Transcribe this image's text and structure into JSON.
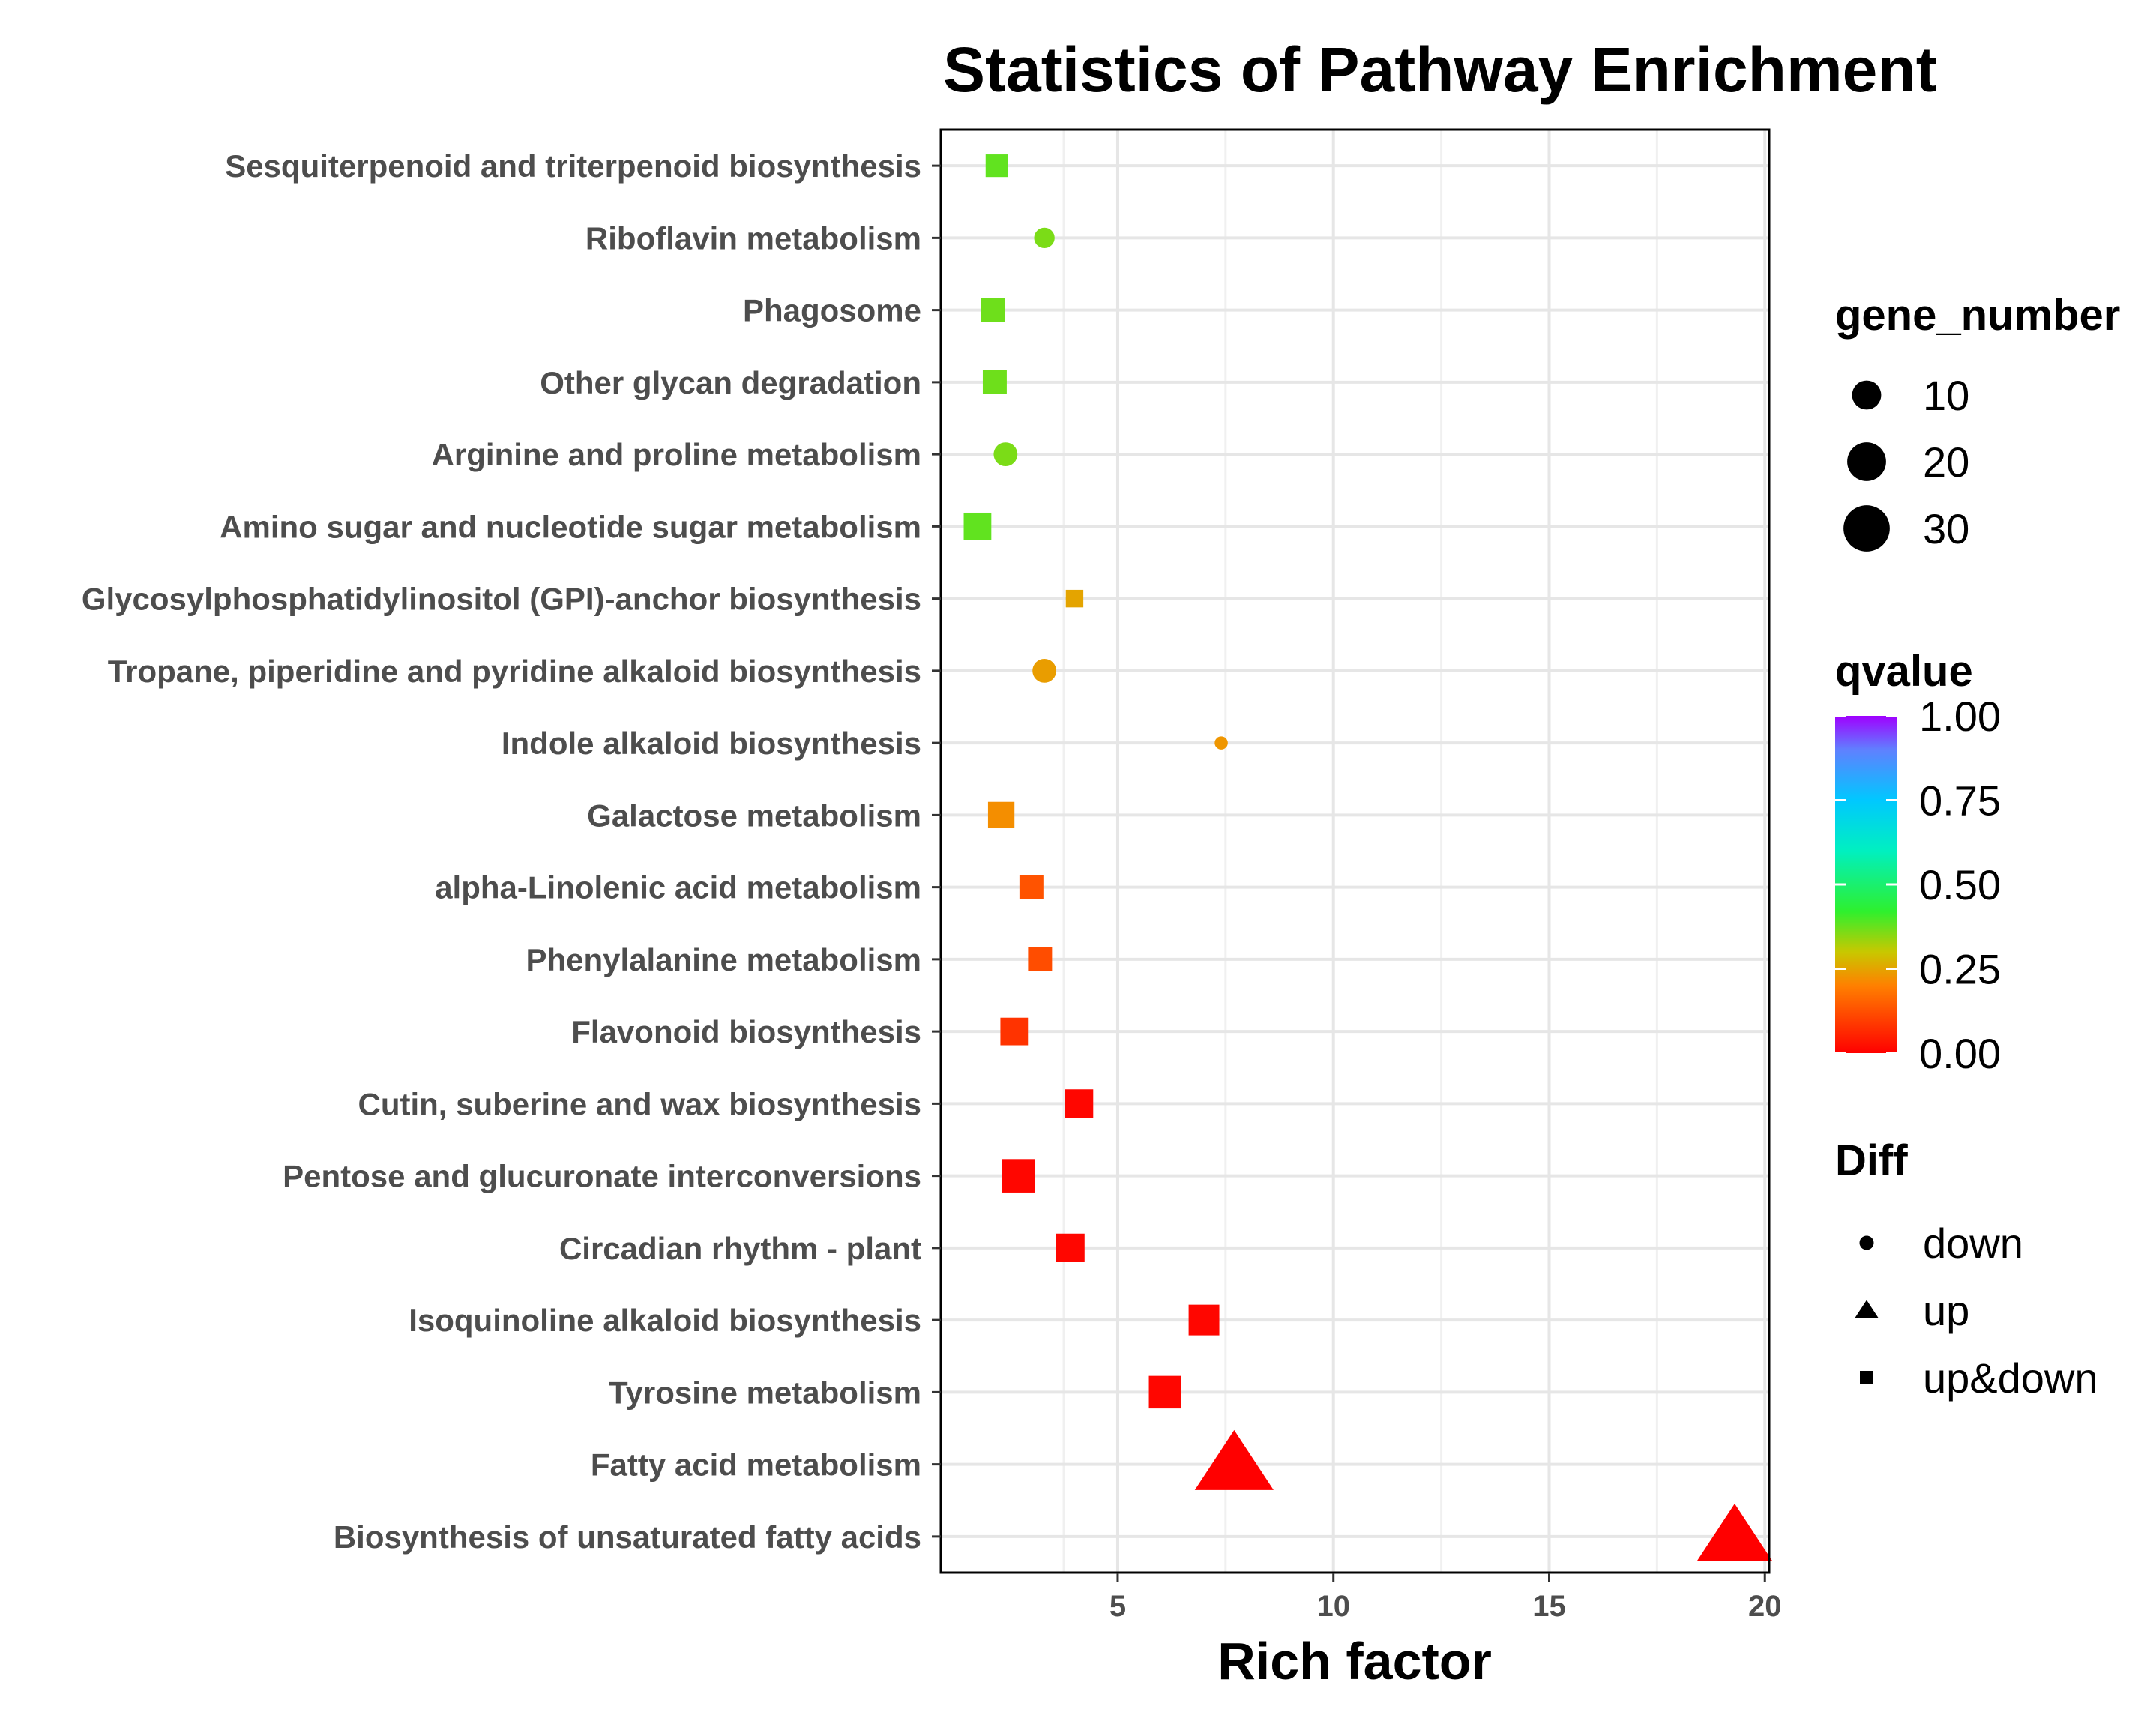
{
  "chart_data": {
    "type": "scatter",
    "title": "Statistics of Pathway Enrichment",
    "xlabel": "Rich factor",
    "ylabel": "",
    "xlim": [
      0.9,
      20.1
    ],
    "xticks": [
      5,
      10,
      15,
      20
    ],
    "xtick_labels": [
      "5",
      "10",
      "15",
      "20"
    ],
    "grid": true,
    "legend_position": "right",
    "categories": [
      "Sesquiterpenoid and triterpenoid biosynthesis",
      "Riboflavin metabolism",
      "Phagosome",
      "Other glycan degradation",
      "Arginine and proline metabolism",
      "Amino sugar and nucleotide sugar metabolism",
      "Glycosylphosphatidylinositol (GPI)-anchor biosynthesis",
      "Tropane, piperidine and pyridine alkaloid biosynthesis",
      "Indole alkaloid biosynthesis",
      "Galactose metabolism",
      "alpha-Linolenic acid metabolism",
      "Phenylalanine metabolism",
      "Flavonoid biosynthesis",
      "Cutin, suberine and wax biosynthesis",
      "Pentose and glucuronate interconversions",
      "Circadian rhythm - plant",
      "Isoquinoline alkaloid biosynthesis",
      "Tyrosine metabolism",
      "Fatty acid metabolism",
      "Biosynthesis of unsaturated fatty acids"
    ],
    "points": [
      {
        "pathway": "Sesquiterpenoid and triterpenoid biosynthesis",
        "rich_factor": 2.2,
        "gene_number": 6,
        "qvalue": 0.38,
        "diff": "up&down"
      },
      {
        "pathway": "Riboflavin metabolism",
        "rich_factor": 3.3,
        "gene_number": 4,
        "qvalue": 0.36,
        "diff": "down"
      },
      {
        "pathway": "Phagosome",
        "rich_factor": 2.1,
        "gene_number": 7,
        "qvalue": 0.37,
        "diff": "up&down"
      },
      {
        "pathway": "Other glycan degradation",
        "rich_factor": 2.15,
        "gene_number": 7,
        "qvalue": 0.37,
        "diff": "up&down"
      },
      {
        "pathway": "Arginine and proline metabolism",
        "rich_factor": 2.4,
        "gene_number": 6,
        "qvalue": 0.36,
        "diff": "down"
      },
      {
        "pathway": "Amino sugar and nucleotide sugar metabolism",
        "rich_factor": 1.75,
        "gene_number": 10,
        "qvalue": 0.38,
        "diff": "up&down"
      },
      {
        "pathway": "Glycosylphosphatidylinositol (GPI)-anchor biosynthesis",
        "rich_factor": 4.0,
        "gene_number": 3,
        "qvalue": 0.25,
        "diff": "up&down"
      },
      {
        "pathway": "Tropane, piperidine and pyridine alkaloid biosynthesis",
        "rich_factor": 3.3,
        "gene_number": 6,
        "qvalue": 0.24,
        "diff": "down"
      },
      {
        "pathway": "Indole alkaloid biosynthesis",
        "rich_factor": 7.4,
        "gene_number": 1,
        "qvalue": 0.23,
        "diff": "down"
      },
      {
        "pathway": "Galactose metabolism",
        "rich_factor": 2.3,
        "gene_number": 9,
        "qvalue": 0.22,
        "diff": "up&down"
      },
      {
        "pathway": "alpha-Linolenic acid metabolism",
        "rich_factor": 3.0,
        "gene_number": 7,
        "qvalue": 0.13,
        "diff": "up&down"
      },
      {
        "pathway": "Phenylalanine metabolism",
        "rich_factor": 3.2,
        "gene_number": 7,
        "qvalue": 0.12,
        "diff": "up&down"
      },
      {
        "pathway": "Flavonoid biosynthesis",
        "rich_factor": 2.6,
        "gene_number": 10,
        "qvalue": 0.08,
        "diff": "up&down"
      },
      {
        "pathway": "Cutin, suberine and wax biosynthesis",
        "rich_factor": 4.1,
        "gene_number": 11,
        "qvalue": 0.01,
        "diff": "up&down"
      },
      {
        "pathway": "Pentose and glucuronate interconversions",
        "rich_factor": 2.7,
        "gene_number": 16,
        "qvalue": 0.01,
        "diff": "up&down"
      },
      {
        "pathway": "Circadian rhythm - plant",
        "rich_factor": 3.9,
        "gene_number": 11,
        "qvalue": 0.01,
        "diff": "up&down"
      },
      {
        "pathway": "Isoquinoline alkaloid biosynthesis",
        "rich_factor": 7.0,
        "gene_number": 13,
        "qvalue": 0.01,
        "diff": "up&down"
      },
      {
        "pathway": "Tyrosine metabolism",
        "rich_factor": 6.1,
        "gene_number": 15,
        "qvalue": 0.01,
        "diff": "up&down"
      },
      {
        "pathway": "Fatty acid metabolism",
        "rich_factor": 7.7,
        "gene_number": 33,
        "qvalue": 0.0,
        "diff": "up"
      },
      {
        "pathway": "Biosynthesis of unsaturated fatty acids",
        "rich_factor": 19.3,
        "gene_number": 30,
        "qvalue": 0.0,
        "diff": "up"
      }
    ],
    "legends": {
      "size": {
        "title": "gene_number",
        "values": [
          10,
          20,
          30
        ],
        "labels": [
          "10",
          "20",
          "30"
        ]
      },
      "color": {
        "title": "qvalue",
        "range": [
          0,
          1
        ],
        "ticks": [
          1.0,
          0.75,
          0.5,
          0.25,
          0.0
        ],
        "labels": [
          "1.00",
          "0.75",
          "0.50",
          "0.25",
          "0.00"
        ]
      },
      "shape": {
        "title": "Diff",
        "labels": [
          "down",
          "up",
          "up&down"
        ]
      }
    }
  }
}
